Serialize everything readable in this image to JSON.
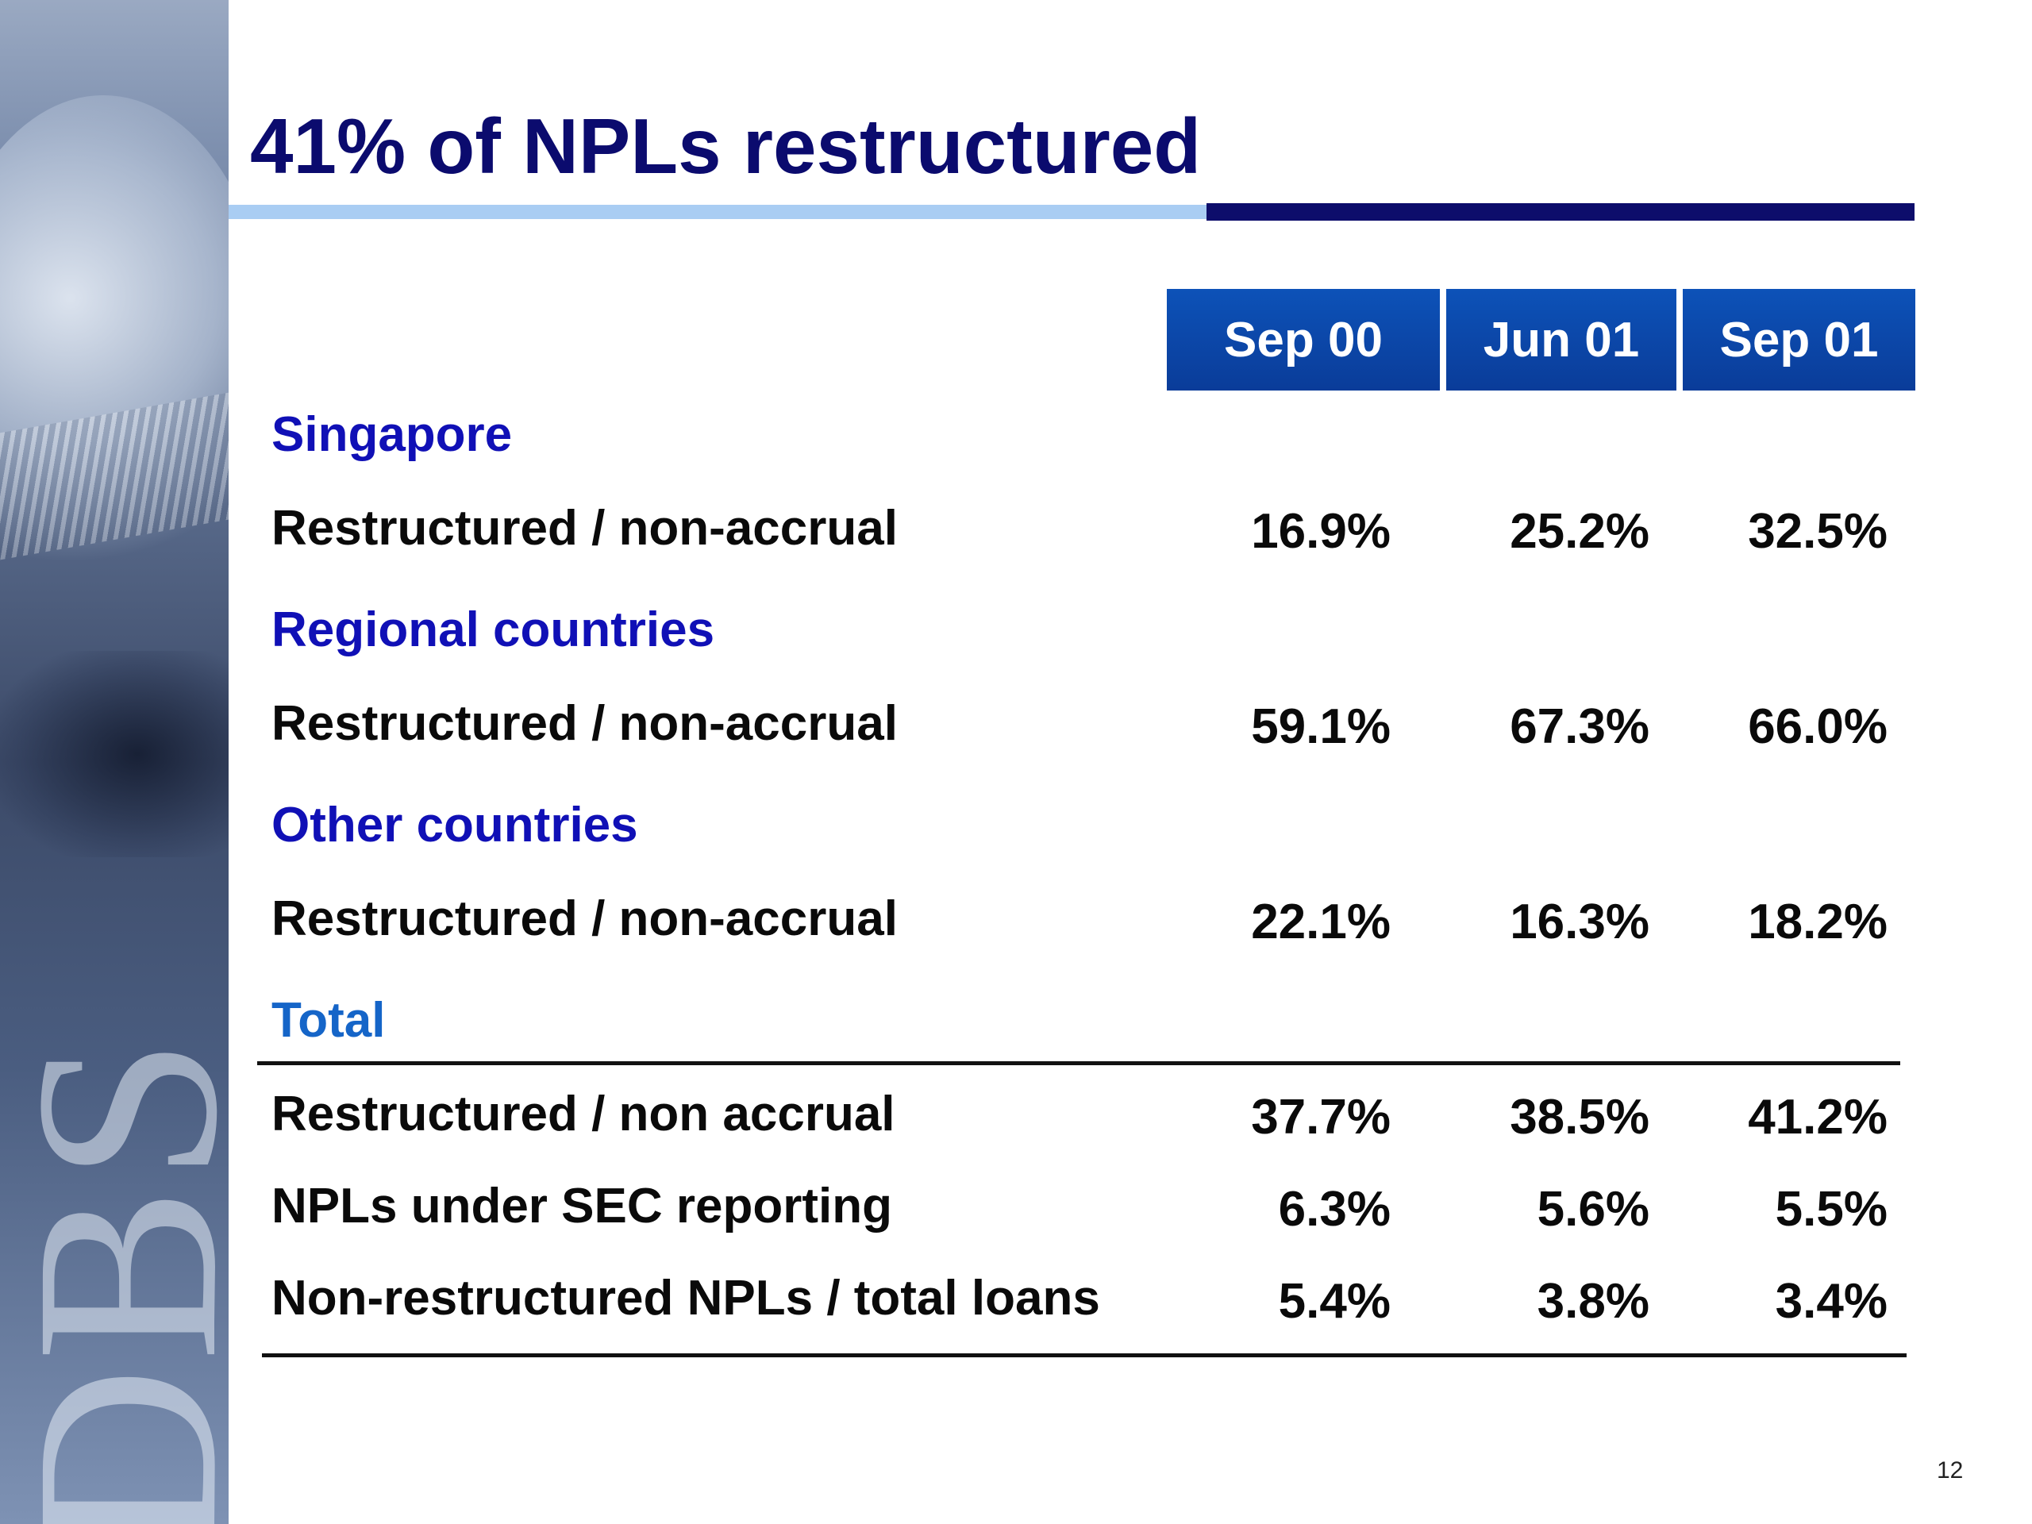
{
  "slide": {
    "title": "41% of NPLs restructured",
    "page_number": "12",
    "watermark_logo": "DBS"
  },
  "table": {
    "columns": [
      "Sep 00",
      "Jun 01",
      "Sep 01"
    ],
    "sections": [
      {
        "heading": "Singapore",
        "rows": [
          {
            "label": "Restructured / non-accrual",
            "values": [
              "16.9%",
              "25.2%",
              "32.5%"
            ]
          }
        ]
      },
      {
        "heading": "Regional countries",
        "rows": [
          {
            "label": "Restructured / non-accrual",
            "values": [
              "59.1%",
              "67.3%",
              "66.0%"
            ]
          }
        ]
      },
      {
        "heading": "Other countries",
        "rows": [
          {
            "label": "Restructured / non-accrual",
            "values": [
              "22.1%",
              "16.3%",
              "18.2%"
            ]
          }
        ]
      },
      {
        "heading": "Total",
        "rows": [
          {
            "label": "Restructured / non accrual",
            "values": [
              "37.7%",
              "38.5%",
              "41.2%"
            ]
          },
          {
            "label": "NPLs under SEC reporting",
            "values": [
              "6.3%",
              "5.6%",
              "5.5%"
            ]
          },
          {
            "label": "Non-restructured NPLs / total loans",
            "values": [
              "5.4%",
              "3.8%",
              "3.4%"
            ]
          }
        ]
      }
    ]
  },
  "colors": {
    "title": "#0b0b6e",
    "section_heading": "#1010b6",
    "total_heading": "#1565c8",
    "header_fill": "#0a3c99",
    "rule_light": "#a9cdf3",
    "rule_dark": "#0d0d6b"
  }
}
